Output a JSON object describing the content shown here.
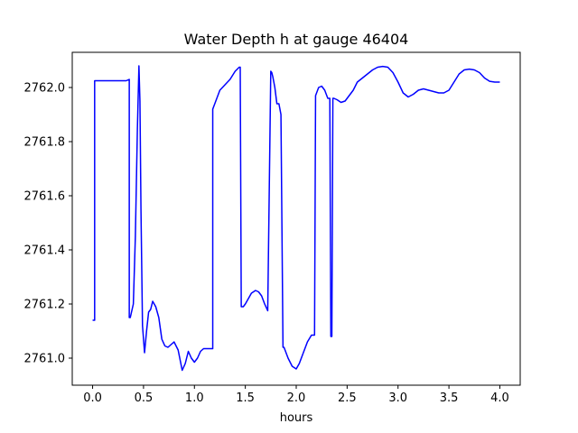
{
  "chart_data": {
    "type": "line",
    "title": "Water Depth h at gauge 46404",
    "xlabel": "hours",
    "ylabel": "",
    "xlim": [
      -0.2,
      4.2
    ],
    "ylim": [
      2760.9,
      2762.13
    ],
    "xticks": [
      0.0,
      0.5,
      1.0,
      1.5,
      2.0,
      2.5,
      3.0,
      3.5,
      4.0
    ],
    "xtick_labels": [
      "0.0",
      "0.5",
      "1.0",
      "1.5",
      "2.0",
      "2.5",
      "3.0",
      "3.5",
      "4.0"
    ],
    "yticks": [
      2761.0,
      2761.2,
      2761.4,
      2761.6,
      2761.8,
      2762.0
    ],
    "ytick_labels": [
      "2761.0",
      "2761.2",
      "2761.4",
      "2761.6",
      "2761.8",
      "2762.0"
    ],
    "grid": false,
    "series": [
      {
        "color": "#0000ff",
        "x": [
          0.0,
          0.02,
          0.02,
          0.03,
          0.33,
          0.36,
          0.36,
          0.37,
          0.4,
          0.42,
          0.44,
          0.455,
          0.465,
          0.475,
          0.49,
          0.51,
          0.53,
          0.55,
          0.57,
          0.59,
          0.62,
          0.65,
          0.68,
          0.71,
          0.74,
          0.77,
          0.8,
          0.84,
          0.88,
          0.91,
          0.94,
          0.97,
          1.0,
          1.03,
          1.06,
          1.09,
          1.12,
          1.15,
          1.18,
          1.18,
          1.2,
          1.25,
          1.3,
          1.35,
          1.4,
          1.44,
          1.45,
          1.46,
          1.48,
          1.5,
          1.53,
          1.56,
          1.6,
          1.63,
          1.66,
          1.69,
          1.72,
          1.75,
          1.76,
          1.77,
          1.79,
          1.81,
          1.83,
          1.85,
          1.87,
          1.88,
          1.89,
          1.92,
          1.96,
          2.0,
          2.03,
          2.07,
          2.11,
          2.15,
          2.18,
          2.19,
          2.2,
          2.22,
          2.25,
          2.28,
          2.31,
          2.33,
          2.34,
          2.35,
          2.36,
          2.37,
          2.4,
          2.44,
          2.48,
          2.52,
          2.56,
          2.6,
          2.65,
          2.7,
          2.75,
          2.8,
          2.85,
          2.9,
          2.95,
          3.0,
          3.05,
          3.1,
          3.15,
          3.2,
          3.25,
          3.3,
          3.35,
          3.4,
          3.45,
          3.5,
          3.55,
          3.6,
          3.65,
          3.7,
          3.75,
          3.8,
          3.85,
          3.9,
          3.95,
          4.0
        ],
        "y": [
          2761.14,
          2761.14,
          2762.025,
          2762.025,
          2762.025,
          2762.03,
          2761.15,
          2761.15,
          2761.2,
          2761.45,
          2761.85,
          2762.08,
          2761.95,
          2761.55,
          2761.12,
          2761.02,
          2761.1,
          2761.17,
          2761.18,
          2761.21,
          2761.19,
          2761.15,
          2761.07,
          2761.045,
          2761.04,
          2761.05,
          2761.06,
          2761.03,
          2760.955,
          2760.98,
          2761.025,
          2761.0,
          2760.985,
          2761.0,
          2761.025,
          2761.035,
          2761.035,
          2761.035,
          2761.035,
          2761.92,
          2761.94,
          2761.99,
          2762.01,
          2762.03,
          2762.06,
          2762.075,
          2762.075,
          2761.19,
          2761.19,
          2761.2,
          2761.22,
          2761.24,
          2761.25,
          2761.245,
          2761.23,
          2761.2,
          2761.175,
          2762.06,
          2762.055,
          2762.04,
          2762.0,
          2761.94,
          2761.94,
          2761.9,
          2761.04,
          2761.04,
          2761.03,
          2761.0,
          2760.97,
          2760.96,
          2760.98,
          2761.02,
          2761.06,
          2761.085,
          2761.085,
          2761.97,
          2761.98,
          2762.0,
          2762.005,
          2761.99,
          2761.96,
          2761.96,
          2761.08,
          2761.08,
          2761.96,
          2761.96,
          2761.955,
          2761.945,
          2761.95,
          2761.97,
          2761.99,
          2762.02,
          2762.035,
          2762.05,
          2762.065,
          2762.075,
          2762.078,
          2762.075,
          2762.055,
          2762.02,
          2761.98,
          2761.965,
          2761.975,
          2761.99,
          2761.995,
          2761.99,
          2761.985,
          2761.98,
          2761.98,
          2761.99,
          2762.02,
          2762.05,
          2762.065,
          2762.068,
          2762.065,
          2762.055,
          2762.035,
          2762.023,
          2762.02,
          2762.02
        ]
      }
    ]
  }
}
